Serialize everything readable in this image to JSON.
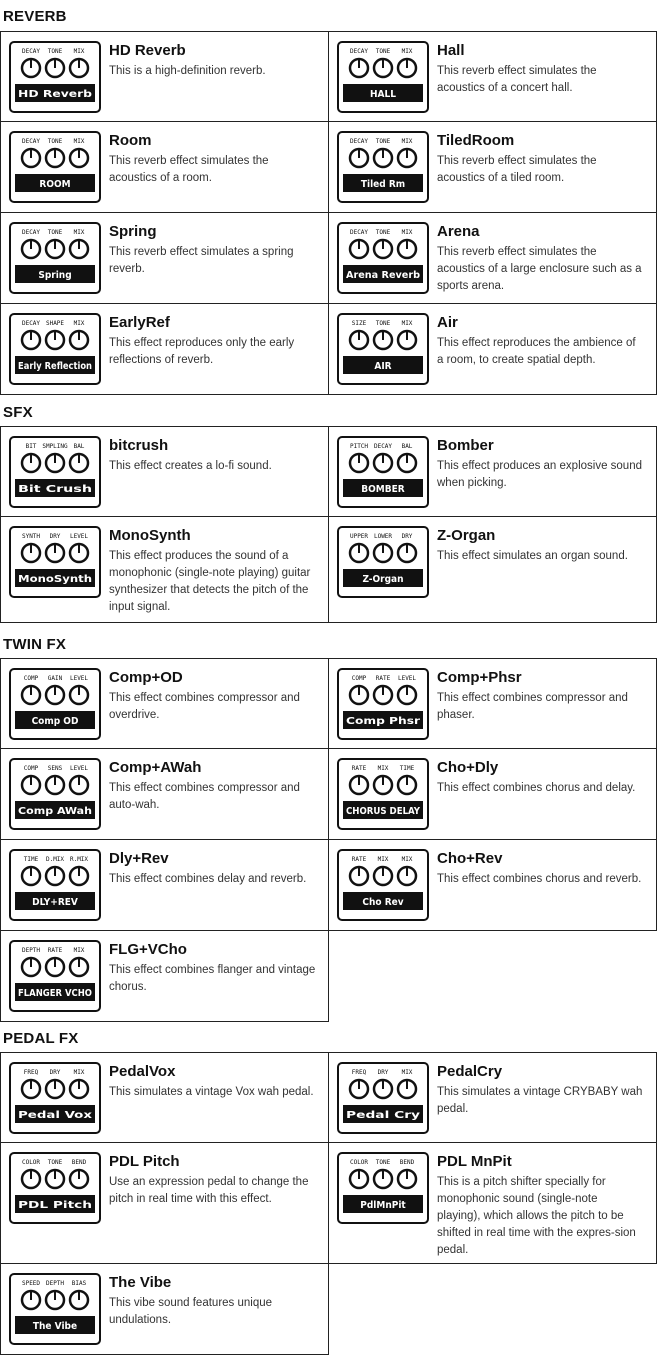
{
  "sections": [
    {
      "title": "REVERB",
      "effects": [
        {
          "name": "HD Reverb",
          "desc": "This is a high-definition reverb.",
          "icon": "hd-reverb-pedal-icon",
          "label": "HD Reverb",
          "knobs": [
            "DECAY",
            "TONE",
            "MIX"
          ]
        },
        {
          "name": "Hall",
          "desc": "This reverb effect simulates the acoustics of a concert hall.",
          "icon": "hall-pedal-icon",
          "label": "HALL",
          "knobs": [
            "DECAY",
            "TONE",
            "MIX"
          ]
        },
        {
          "name": "Room",
          "desc": "This reverb effect simulates the acoustics of a room.",
          "icon": "room-pedal-icon",
          "label": "ROOM",
          "knobs": [
            "DECAY",
            "TONE",
            "MIX"
          ]
        },
        {
          "name": "TiledRoom",
          "desc": "This reverb effect simulates the acoustics of a tiled room.",
          "icon": "tiledroom-pedal-icon",
          "label": "Tiled Rm",
          "knobs": [
            "DECAY",
            "TONE",
            "MIX"
          ]
        },
        {
          "name": "Spring",
          "desc": "This reverb effect simulates a spring reverb.",
          "icon": "spring-pedal-icon",
          "label": "Spring",
          "knobs": [
            "DECAY",
            "TONE",
            "MIX"
          ]
        },
        {
          "name": "Arena",
          "desc": "This reverb effect simulates the acoustics of a large enclosure such as a sports arena.",
          "icon": "arena-pedal-icon",
          "label": "Arena Reverb",
          "knobs": [
            "DECAY",
            "TONE",
            "MIX"
          ]
        },
        {
          "name": "EarlyRef",
          "desc": "This effect reproduces only the early reflections of reverb.",
          "icon": "earlyref-pedal-icon",
          "label": "Early Reflection",
          "knobs": [
            "DECAY",
            "SHAPE",
            "MIX"
          ]
        },
        {
          "name": "Air",
          "desc": "This effect reproduces the ambience of a room, to create spatial depth.",
          "icon": "air-pedal-icon",
          "label": "AIR",
          "knobs": [
            "SIZE",
            "TONE",
            "MIX"
          ]
        }
      ]
    },
    {
      "title": "SFX",
      "effects": [
        {
          "name": "bitcrush",
          "desc": "This effect creates a lo-fi sound.",
          "icon": "bitcrush-pedal-icon",
          "label": "Bit Crush",
          "knobs": [
            "BIT",
            "SMPLING",
            "BAL"
          ]
        },
        {
          "name": "Bomber",
          "desc": "This effect produces an explosive sound when picking.",
          "icon": "bomber-pedal-icon",
          "label": "BOMBER",
          "knobs": [
            "PITCH",
            "DECAY",
            "BAL"
          ]
        },
        {
          "name": "MonoSynth",
          "desc": "This effect produces the sound of a monophonic (single-note playing) guitar synthesizer that detects the pitch of the input signal.",
          "icon": "monosynth-pedal-icon",
          "label": "MonoSynth",
          "knobs": [
            "SYNTH",
            "DRY",
            "LEVEL"
          ]
        },
        {
          "name": "Z-Organ",
          "desc": "This effect simulates an organ sound.",
          "icon": "z-organ-pedal-icon",
          "label": "Z-Organ",
          "knobs": [
            "UPPER",
            "LOWER",
            "DRY"
          ]
        }
      ]
    },
    {
      "title": "TWIN FX",
      "effects": [
        {
          "name": "Comp+OD",
          "desc": "This effect combines compressor and overdrive.",
          "icon": "comp-od-pedal-icon",
          "label": "Comp OD",
          "knobs": [
            "COMP",
            "GAIN",
            "LEVEL"
          ]
        },
        {
          "name": "Comp+Phsr",
          "desc": "This effect combines compressor and phaser.",
          "icon": "comp-phsr-pedal-icon",
          "label": "Comp Phsr",
          "knobs": [
            "COMP",
            "RATE",
            "LEVEL"
          ]
        },
        {
          "name": "Comp+AWah",
          "desc": "This effect combines compressor and auto-wah.",
          "icon": "comp-awah-pedal-icon",
          "label": "Comp AWah",
          "knobs": [
            "COMP",
            "SENS",
            "LEVEL"
          ]
        },
        {
          "name": "Cho+Dly",
          "desc": "This effect combines chorus and delay.",
          "icon": "cho-dly-pedal-icon",
          "label": "CHORUS DELAY",
          "knobs": [
            "RATE",
            "MIX",
            "TIME"
          ]
        },
        {
          "name": "Dly+Rev",
          "desc": "This effect combines delay and reverb.",
          "icon": "dly-rev-pedal-icon",
          "label": "DLY+REV",
          "knobs": [
            "TIME",
            "D.MIX",
            "R.MIX"
          ]
        },
        {
          "name": "Cho+Rev",
          "desc": "This effect combines chorus and reverb.",
          "icon": "cho-rev-pedal-icon",
          "label": "Cho Rev",
          "knobs": [
            "RATE",
            "MIX",
            "MIX"
          ]
        },
        {
          "name": "FLG+VCho",
          "desc": "This effect combines flanger and vintage chorus.",
          "icon": "flg-vcho-pedal-icon",
          "label": "FLANGER VCHO",
          "knobs": [
            "DEPTH",
            "RATE",
            "MIX"
          ]
        }
      ]
    },
    {
      "title": "PEDAL FX",
      "effects": [
        {
          "name": "PedalVox",
          "desc": "This simulates a vintage Vox wah pedal.",
          "icon": "pedalvox-pedal-icon",
          "label": "Pedal Vox",
          "knobs": [
            "FREQ",
            "DRY",
            "MIX"
          ]
        },
        {
          "name": "PedalCry",
          "desc": "This simulates a vintage CRYBABY wah pedal.",
          "icon": "pedalcry-pedal-icon",
          "label": "Pedal Cry",
          "knobs": [
            "FREQ",
            "DRY",
            "MIX"
          ]
        },
        {
          "name": "PDL Pitch",
          "desc": "Use an expression pedal to change the pitch in real time with this effect.",
          "icon": "pdl-pitch-pedal-icon",
          "label": "PDL Pitch",
          "knobs": [
            "COLOR",
            "TONE",
            "BEND"
          ]
        },
        {
          "name": "PDL MnPit",
          "desc": "This is a pitch shifter specially for monophonic sound (single-note playing), which allows the pitch to be shifted in real time with the expres-sion pedal.",
          "icon": "pdl-mnpit-pedal-icon",
          "label": "PdlMnPit",
          "knobs": [
            "COLOR",
            "TONE",
            "BEND"
          ]
        },
        {
          "name": "The Vibe",
          "desc": "This vibe sound features unique undulations.",
          "icon": "the-vibe-pedal-icon",
          "label": "The Vibe",
          "knobs": [
            "SPEED",
            "DEPTH",
            "BIAS"
          ]
        }
      ]
    }
  ]
}
